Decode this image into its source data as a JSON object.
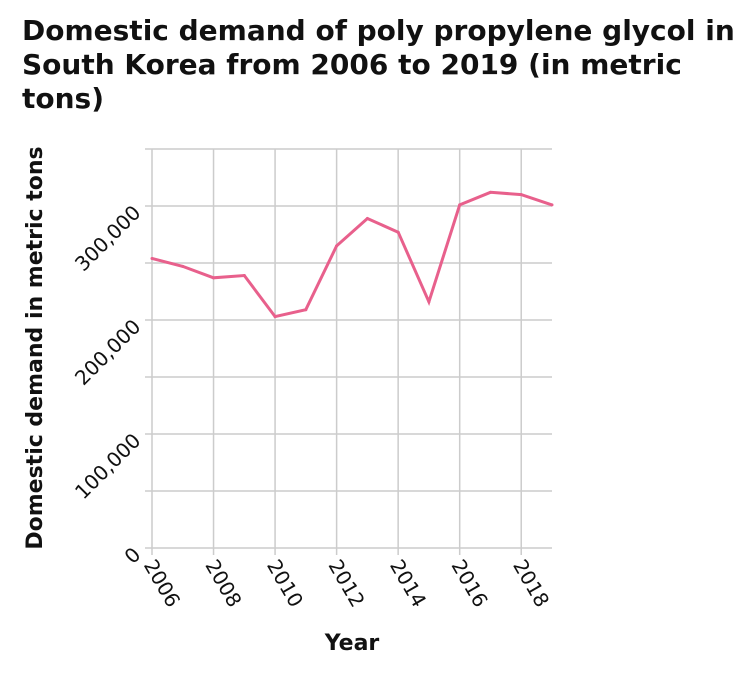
{
  "chart_data": {
    "type": "line",
    "title": "Domestic demand of poly propylene glycol in South Korea from 2006 to 2019 (in metric tons)",
    "xlabel": "Year",
    "ylabel": "Domestic demand in metric tons",
    "x": [
      2006,
      2007,
      2008,
      2009,
      2010,
      2011,
      2012,
      2013,
      2014,
      2015,
      2016,
      2017,
      2018,
      2019
    ],
    "y": [
      254000,
      247000,
      237000,
      239000,
      203000,
      209000,
      265000,
      289000,
      277000,
      216000,
      301000,
      312000,
      310000,
      301000
    ],
    "xticks": [
      "2006",
      "2008",
      "2010",
      "2012",
      "2014",
      "2016",
      "2018"
    ],
    "yticks": [
      "0",
      "100,000",
      "200,000",
      "300,000"
    ],
    "xlim": [
      2006,
      2019
    ],
    "ylim": [
      0,
      350000
    ],
    "grid": true,
    "line_color": "#e8608c"
  }
}
